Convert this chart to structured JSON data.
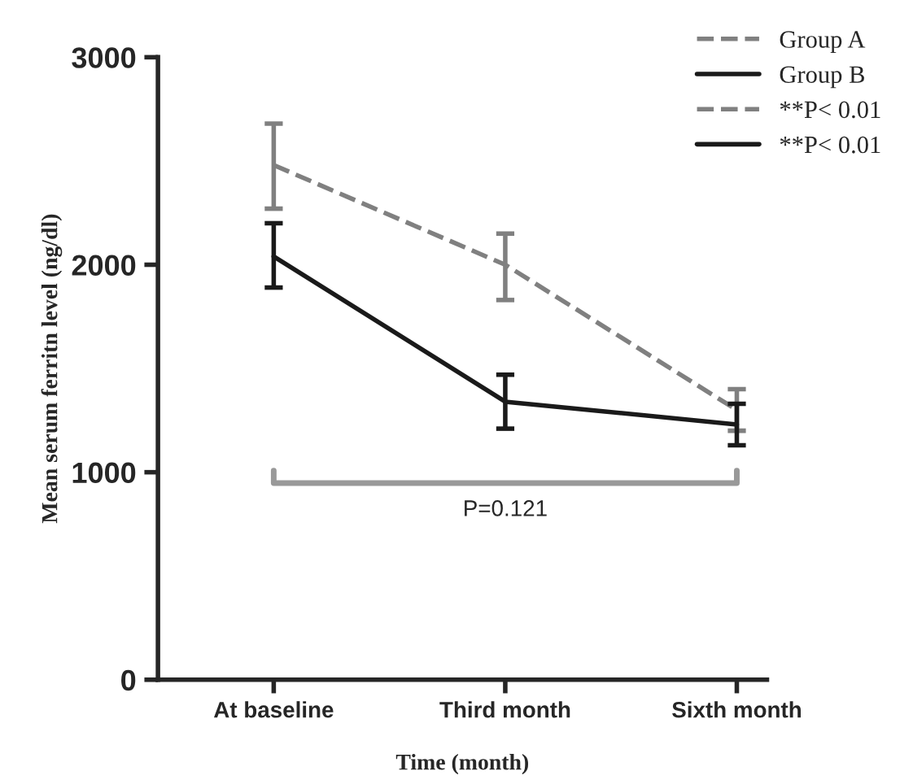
{
  "chart_data": {
    "type": "line",
    "xlabel": "Time (month)",
    "ylabel": "Mean serum ferritn level (ng/dl)",
    "categories": [
      "At baseline",
      "Third month",
      "Sixth month"
    ],
    "series": [
      {
        "name": "Group A",
        "color": "#808080",
        "line_style": "dashed",
        "values": [
          2480,
          2000,
          1300
        ],
        "errors": [
          [
            2270,
            2680
          ],
          [
            1830,
            2150
          ],
          [
            1200,
            1400
          ]
        ]
      },
      {
        "name": "Group B",
        "color": "#1a1a1a",
        "line_style": "solid",
        "values": [
          2040,
          1340,
          1230
        ],
        "errors": [
          [
            1890,
            2200
          ],
          [
            1210,
            1470
          ],
          [
            1130,
            1330
          ]
        ]
      }
    ],
    "ylim": [
      0,
      3000
    ],
    "yticks": [
      0,
      1000,
      2000,
      3000
    ],
    "grid": false,
    "legend": "top right",
    "marker": "none",
    "annotations": [
      "**P< 0.01",
      "**P< 0.01",
      "P=0.121"
    ]
  }
}
